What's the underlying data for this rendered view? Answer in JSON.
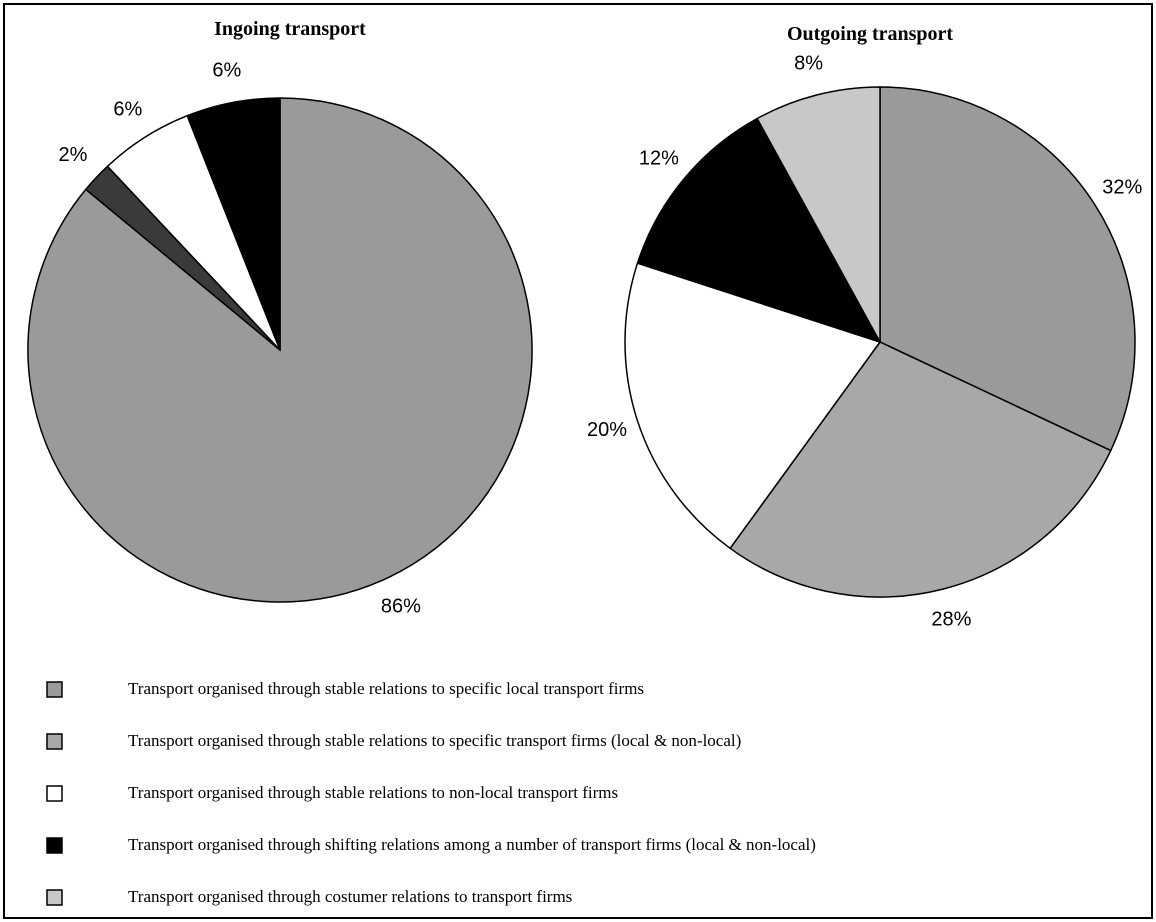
{
  "chart_data": [
    {
      "type": "pie",
      "title": "Ingoing transport",
      "values": [
        86,
        2,
        6,
        6
      ],
      "value_labels": [
        "86%",
        "2%",
        "6%",
        "6%"
      ],
      "colors": [
        "#9a9a9a",
        "#3a3a3a",
        "#ffffff",
        "#000000"
      ]
    },
    {
      "type": "pie",
      "title": "Outgoing transport",
      "values": [
        32,
        28,
        20,
        12,
        8
      ],
      "value_labels": [
        "32%",
        "28%",
        "20%",
        "12%",
        "8%"
      ],
      "colors": [
        "#9a9a9a",
        "#a8a8a8",
        "#ffffff",
        "#000000",
        "#c8c8c8"
      ]
    }
  ],
  "legend": {
    "labels": [
      "Transport organised through stable relations to specific local transport firms",
      "Transport organised through stable relations to specific transport firms (local & non-local)",
      "Transport organised through stable relations to non-local transport firms",
      "Transport organised through shifting relations among a number of transport firms (local & non-local)",
      "Transport organised through costumer relations to transport firms"
    ],
    "colors": [
      "#9a9a9a",
      "#a8a8a8",
      "#ffffff",
      "#000000",
      "#c8c8c8"
    ]
  }
}
